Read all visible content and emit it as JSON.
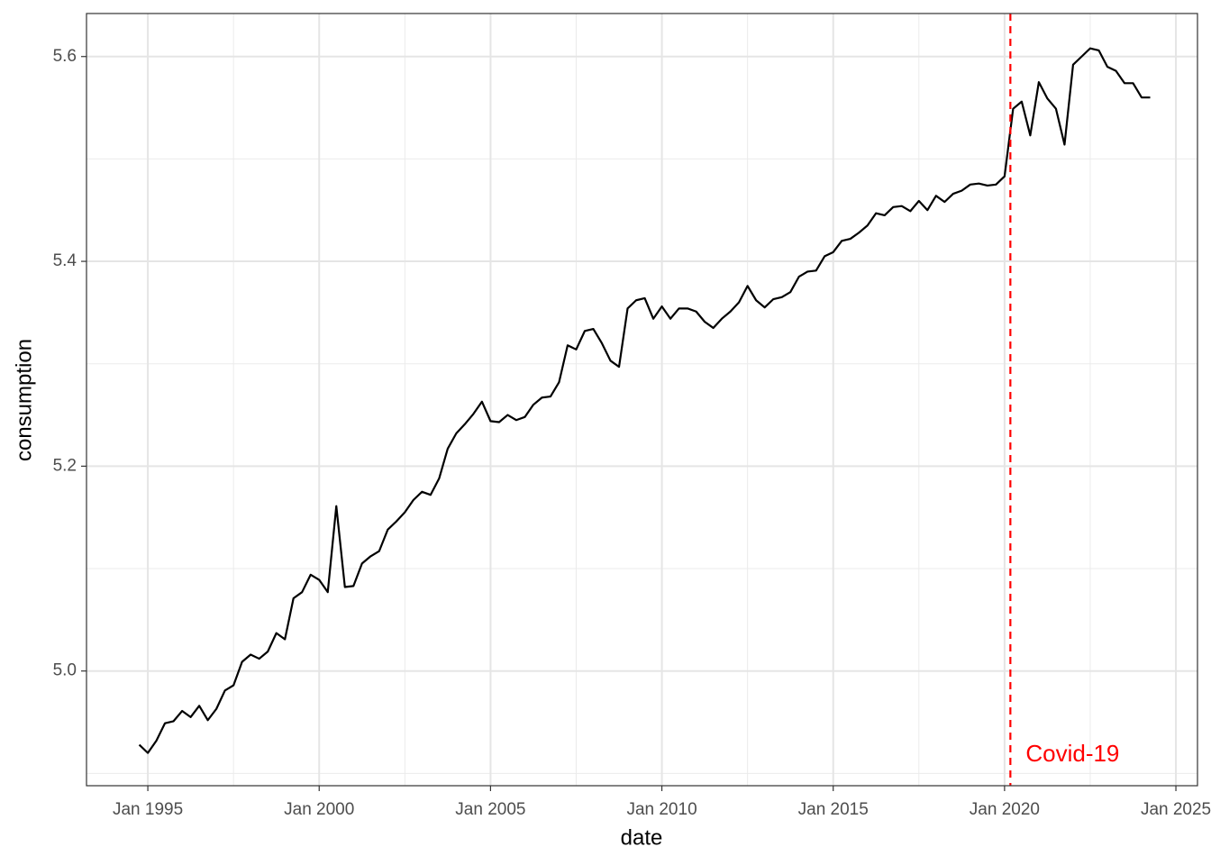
{
  "chart_data": {
    "type": "line",
    "x_label": "date",
    "y_label": "consumption",
    "color": "#000000",
    "grid": true,
    "xlim": [
      1993.21,
      2025.63
    ],
    "ylim": [
      4.888,
      5.642
    ],
    "xticks": [
      {
        "value": 1995,
        "label": "Jan 1995"
      },
      {
        "value": 2000,
        "label": "Jan 2000"
      },
      {
        "value": 2005,
        "label": "Jan 2005"
      },
      {
        "value": 2010,
        "label": "Jan 2010"
      },
      {
        "value": 2015,
        "label": "Jan 2015"
      },
      {
        "value": 2020,
        "label": "Jan 2020"
      },
      {
        "value": 2025,
        "label": "Jan 2025"
      }
    ],
    "x_minor_ticks": [
      1997.5,
      2002.5,
      2007.5,
      2012.5,
      2017.5,
      2022.5
    ],
    "yticks": [
      {
        "value": 5,
        "label": "5.0"
      },
      5.2,
      5.4,
      5.6
    ],
    "y_minor_ticks": [
      4.9,
      5.1,
      5.3,
      5.5
    ],
    "x": [
      1994.75,
      1995,
      1995.25,
      1995.5,
      1995.75,
      1996,
      1996.25,
      1996.5,
      1996.75,
      1997,
      1997.25,
      1997.5,
      1997.75,
      1998,
      1998.25,
      1998.5,
      1998.75,
      1999,
      1999.25,
      1999.5,
      1999.75,
      2000,
      2000.25,
      2000.5,
      2000.75,
      2001,
      2001.25,
      2001.5,
      2001.75,
      2002,
      2002.25,
      2002.5,
      2002.75,
      2003,
      2003.25,
      2003.5,
      2003.75,
      2004,
      2004.25,
      2004.5,
      2004.75,
      2005,
      2005.25,
      2005.5,
      2005.75,
      2006,
      2006.25,
      2006.5,
      2006.75,
      2007,
      2007.25,
      2007.5,
      2007.75,
      2008,
      2008.25,
      2008.5,
      2008.75,
      2009,
      2009.25,
      2009.5,
      2009.75,
      2010,
      2010.25,
      2010.5,
      2010.75,
      2011,
      2011.25,
      2011.5,
      2011.75,
      2012,
      2012.25,
      2012.5,
      2012.75,
      2013,
      2013.25,
      2013.5,
      2013.75,
      2014,
      2014.25,
      2014.5,
      2014.75,
      2015,
      2015.25,
      2015.5,
      2015.75,
      2016,
      2016.25,
      2016.5,
      2016.75,
      2017,
      2017.25,
      2017.5,
      2017.75,
      2018,
      2018.25,
      2018.5,
      2018.75,
      2019,
      2019.25,
      2019.5,
      2019.75,
      2020,
      2020.25,
      2020.5,
      2020.75,
      2021,
      2021.25,
      2021.5,
      2021.75,
      2022,
      2022.25,
      2022.5,
      2022.75,
      2023,
      2023.25,
      2023.5,
      2023.75,
      2024,
      2024.25
    ],
    "values": [
      4.928,
      4.92,
      4.932,
      4.949,
      4.951,
      4.961,
      4.955,
      4.966,
      4.952,
      4.963,
      4.981,
      4.986,
      5.009,
      5.016,
      5.012,
      5.019,
      5.037,
      5.031,
      5.071,
      5.077,
      5.094,
      5.089,
      5.077,
      5.161,
      5.082,
      5.083,
      5.105,
      5.112,
      5.117,
      5.138,
      5.146,
      5.155,
      5.167,
      5.175,
      5.172,
      5.188,
      5.217,
      5.232,
      5.241,
      5.251,
      5.263,
      5.244,
      5.243,
      5.25,
      5.245,
      5.248,
      5.26,
      5.267,
      5.268,
      5.282,
      5.318,
      5.314,
      5.332,
      5.334,
      5.32,
      5.303,
      5.297,
      5.354,
      5.362,
      5.364,
      5.344,
      5.356,
      5.344,
      5.354,
      5.354,
      5.351,
      5.341,
      5.335,
      5.344,
      5.351,
      5.36,
      5.376,
      5.362,
      5.355,
      5.363,
      5.365,
      5.37,
      5.385,
      5.39,
      5.391,
      5.405,
      5.409,
      5.42,
      5.422,
      5.428,
      5.435,
      5.447,
      5.445,
      5.453,
      5.454,
      5.449,
      5.459,
      5.45,
      5.464,
      5.458,
      5.466,
      5.469,
      5.475,
      5.476,
      5.474,
      5.475,
      5.483,
      5.549,
      5.556,
      5.523,
      5.575,
      5.559,
      5.549,
      5.514,
      5.592,
      5.6,
      5.608,
      5.606,
      5.59,
      5.586,
      5.574,
      5.574,
      5.56,
      5.56
    ],
    "annotations": [
      {
        "text": "Covid-19",
        "x": 2020.17,
        "color": "#ff0000"
      }
    ]
  }
}
